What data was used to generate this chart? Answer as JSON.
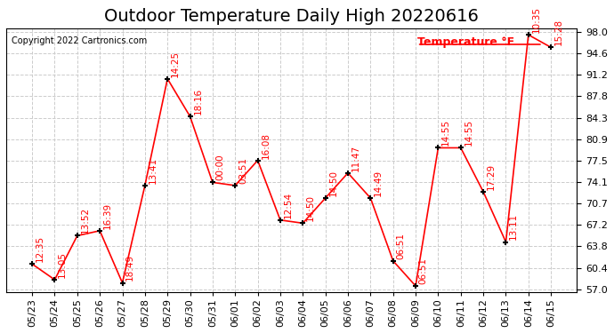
{
  "title": "Outdoor Temperature Daily High 20220616",
  "copyright": "Copyright 2022 Cartronics.com",
  "legend_label": "Temperature °F",
  "dates": [
    "05/23",
    "05/24",
    "05/25",
    "05/26",
    "05/27",
    "05/28",
    "05/29",
    "05/30",
    "05/31",
    "06/01",
    "06/02",
    "06/03",
    "06/04",
    "06/05",
    "06/06",
    "06/07",
    "06/08",
    "06/09",
    "06/10",
    "06/11",
    "06/12",
    "06/13",
    "06/14",
    "06/15"
  ],
  "values": [
    61.0,
    58.5,
    65.5,
    66.3,
    58.0,
    73.5,
    90.5,
    84.5,
    74.0,
    73.5,
    77.5,
    68.0,
    67.5,
    71.5,
    75.5,
    71.5,
    61.5,
    57.5,
    79.5,
    79.5,
    72.5,
    64.5,
    97.5,
    95.5
  ],
  "time_labels": [
    "12:35",
    "13:05",
    "13:52",
    "16:39",
    "18:49",
    "13:41",
    "14:25",
    "18:16",
    "00:00",
    "03:51",
    "16:08",
    "12:54",
    "14:50",
    "14:50",
    "11:47",
    "14:49",
    "06:51",
    "06:51",
    "14:55",
    "14:55",
    "17:29",
    "13:11",
    "10:35",
    "15:28"
  ],
  "line_color": "red",
  "marker_color": "black",
  "label_color": "red",
  "background_color": "white",
  "grid_color": "#cccccc",
  "ylim": [
    57.0,
    98.0
  ],
  "yticks": [
    57.0,
    60.4,
    63.8,
    67.2,
    70.7,
    74.1,
    77.5,
    80.9,
    84.3,
    87.8,
    91.2,
    94.6,
    98.0
  ],
  "title_fontsize": 14,
  "label_fontsize": 7.5,
  "tick_fontsize": 8,
  "copyright_fontsize": 7
}
